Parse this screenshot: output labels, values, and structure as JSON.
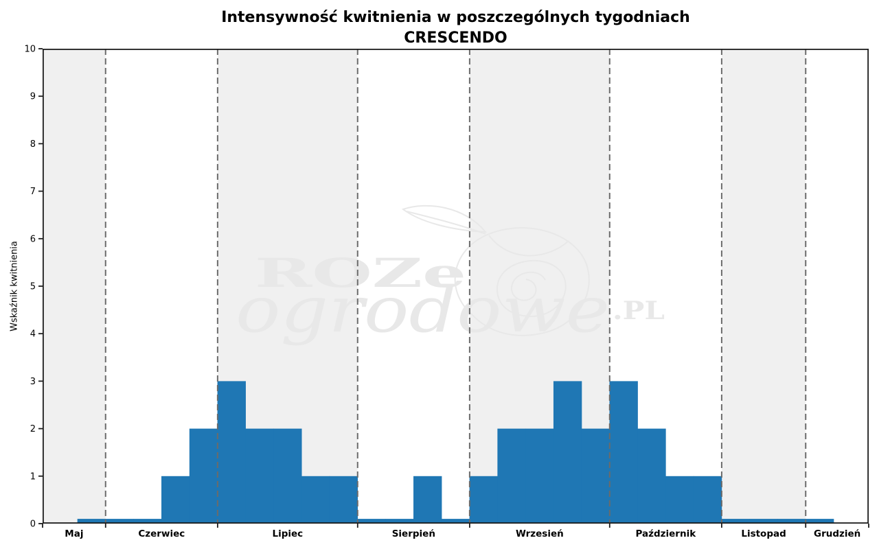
{
  "chart_data": {
    "type": "bar",
    "title_line1": "Intensywność kwitnienia w poszczególnych tygodniach",
    "title_line2": "CRESCENDO",
    "ylabel": "Wskaźnik kwitnienia",
    "ylim": [
      0,
      10
    ],
    "yticks": [
      0,
      1,
      2,
      3,
      4,
      5,
      6,
      7,
      8,
      9,
      10
    ],
    "x_structure": "weekly flowering-intensity bars grouped by month; alternate months have shaded background bands; dashed vertical lines mark month boundaries",
    "edge_margin_weeks": 1.25,
    "months": [
      {
        "label": "Maj",
        "shaded": true,
        "weekly_values": [
          0.1
        ]
      },
      {
        "label": "Czerwiec",
        "shaded": false,
        "weekly_values": [
          0.1,
          0.1,
          1,
          2
        ]
      },
      {
        "label": "Lipiec",
        "shaded": true,
        "weekly_values": [
          3,
          2,
          2,
          1,
          1
        ]
      },
      {
        "label": "Sierpień",
        "shaded": false,
        "weekly_values": [
          0.1,
          0.1,
          1,
          0.1
        ]
      },
      {
        "label": "Wrzesień",
        "shaded": true,
        "weekly_values": [
          1,
          2,
          2,
          3,
          2
        ]
      },
      {
        "label": "Październik",
        "shaded": false,
        "weekly_values": [
          3,
          2,
          1,
          1
        ]
      },
      {
        "label": "Listopad",
        "shaded": true,
        "weekly_values": [
          0.1,
          0.1,
          0.1
        ]
      },
      {
        "label": "Grudzień",
        "shaded": false,
        "weekly_values": [
          0.1
        ]
      }
    ],
    "weekly_values_flat": [
      0.1,
      0.1,
      0.1,
      1,
      2,
      3,
      2,
      2,
      1,
      1,
      0.1,
      0.1,
      1,
      0.1,
      1,
      2,
      2,
      3,
      2,
      3,
      2,
      1,
      1,
      0.1,
      0.1,
      0.1,
      0.1
    ],
    "grid": false,
    "legend": null,
    "colors": {
      "bar": "#1f77b4",
      "shaded_band": "#f0f0f0",
      "boundary_dash": "#6b6b6b",
      "spine": "#1c1c1c",
      "text": "#000000",
      "watermark": "#e8e8e8"
    },
    "watermark": {
      "word_serif": "ROZe",
      "word_script": "ogrodowe",
      "suffix": ".PL"
    }
  }
}
